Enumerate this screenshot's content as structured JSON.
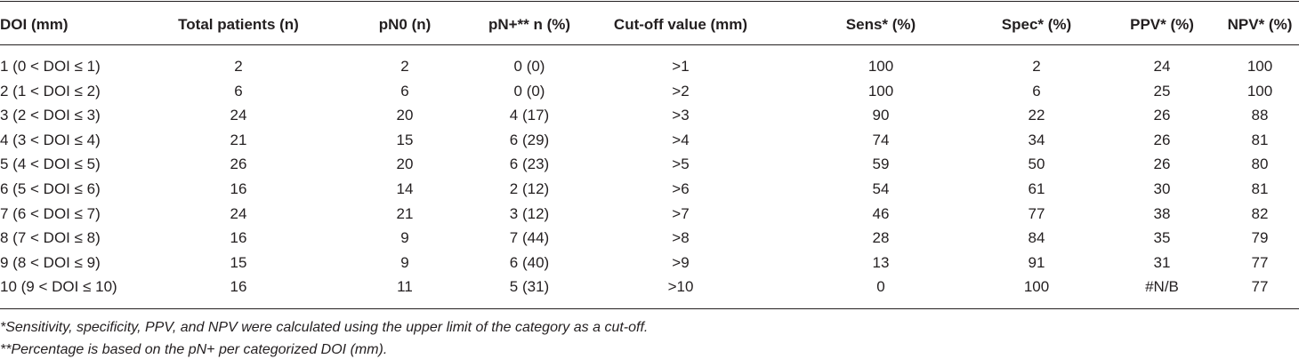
{
  "table": {
    "header": [
      "DOI (mm)",
      "Total patients (n)",
      "pN0 (n)",
      "pN+** n (%)",
      "Cut-off value (mm)",
      "Sens* (%)",
      "Spec* (%)",
      "PPV* (%)",
      "NPV* (%)"
    ],
    "rows": [
      [
        "1 (0 < DOI ≤ 1)",
        "2",
        "2",
        "0 (0)",
        ">1",
        "100",
        "2",
        "24",
        "100"
      ],
      [
        "2 (1 < DOI ≤ 2)",
        "6",
        "6",
        "0 (0)",
        ">2",
        "100",
        "6",
        "25",
        "100"
      ],
      [
        "3 (2 < DOI ≤ 3)",
        "24",
        "20",
        "4 (17)",
        ">3",
        "90",
        "22",
        "26",
        "88"
      ],
      [
        "4 (3 < DOI ≤ 4)",
        "21",
        "15",
        "6 (29)",
        ">4",
        "74",
        "34",
        "26",
        "81"
      ],
      [
        "5 (4 < DOI ≤ 5)",
        "26",
        "20",
        "6 (23)",
        ">5",
        "59",
        "50",
        "26",
        "80"
      ],
      [
        "6 (5 < DOI ≤ 6)",
        "16",
        "14",
        "2 (12)",
        ">6",
        "54",
        "61",
        "30",
        "81"
      ],
      [
        "7 (6 < DOI ≤ 7)",
        "24",
        "21",
        "3 (12)",
        ">7",
        "46",
        "77",
        "38",
        "82"
      ],
      [
        "8 (7 < DOI ≤ 8)",
        "16",
        "9",
        "7 (44)",
        ">8",
        "28",
        "84",
        "35",
        "79"
      ],
      [
        "9 (8 < DOI ≤ 9)",
        "15",
        "9",
        "6 (40)",
        ">9",
        "13",
        "91",
        "31",
        "77"
      ],
      [
        "10 (9 < DOI ≤ 10)",
        "16",
        "11",
        "5 (31)",
        ">10",
        "0",
        "100",
        "#N/B",
        "77"
      ]
    ]
  },
  "footnotes": [
    "*Sensitivity, specificity, PPV, and NPV were calculated using the upper limit of the category as a cut-off.",
    "**Percentage is based on the pN+ per categorized DOI (mm)."
  ]
}
